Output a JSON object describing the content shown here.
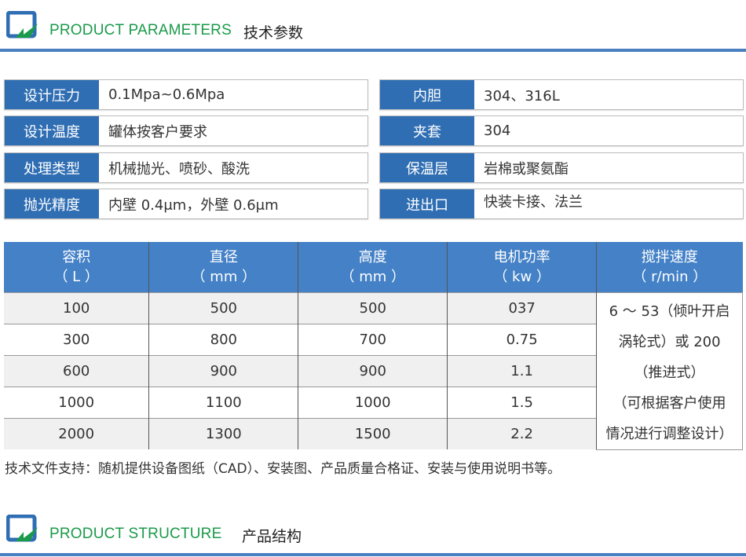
{
  "section1": {
    "title_en": "PRODUCT PARAMETERS",
    "title_cn": "技术参数"
  },
  "params_left": [
    {
      "label": "设计压力",
      "value": "0.1Mpa~0.6Mpa"
    },
    {
      "label": "设计温度",
      "value": "罐体按客户要求"
    },
    {
      "label": "处理类型",
      "value": "机械抛光、喷砂、酸洗"
    },
    {
      "label": "抛光精度",
      "value": "内壁 0.4μm，外壁 0.6μm"
    }
  ],
  "params_right": [
    {
      "label": "内胆",
      "value": "304、316L"
    },
    {
      "label": "夹套",
      "value": "304"
    },
    {
      "label": "保温层",
      "value": "岩棉或聚氨酯"
    },
    {
      "label": "进出口",
      "value": "快装卡接、法兰"
    }
  ],
  "table": {
    "headers": [
      {
        "name": "容积",
        "unit": "（ L ）"
      },
      {
        "name": "直径",
        "unit": "（ mm ）"
      },
      {
        "name": "高度",
        "unit": "（ mm ）"
      },
      {
        "name": "电机功率",
        "unit": "（ kw ）"
      },
      {
        "name": "搅拌速度",
        "unit": "（ r/min ）"
      }
    ],
    "rows": [
      [
        "100",
        "500",
        "500",
        "037"
      ],
      [
        "300",
        "800",
        "700",
        "0.75"
      ],
      [
        "600",
        "900",
        "900",
        "1.1"
      ],
      [
        "1000",
        "1100",
        "1000",
        "1.5"
      ],
      [
        "2000",
        "1300",
        "1500",
        "2.2"
      ]
    ],
    "speed_lines": [
      "6 ～ 53（倾叶开启",
      "涡轮式）或 200",
      "（推进式）",
      "（可根据客户使用",
      "情况进行调整设计）"
    ]
  },
  "footer_note": "技术文件支持：随机提供设备图纸（CAD）、安装图、产品质量合格证、安装与使用说明书等。",
  "section2": {
    "title_en": "PRODUCT STRUCTURE",
    "title_cn": "产品结构"
  },
  "colors": {
    "accent_blue": "#2f6eb3",
    "header_blue": "#4481c7",
    "title_green": "#1a9a4a"
  }
}
